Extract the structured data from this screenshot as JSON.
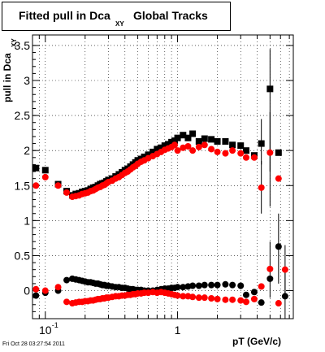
{
  "title": {
    "main": "Fitted pull in Dca",
    "sub": "XY",
    "tail": "Global Tracks"
  },
  "footer": "Fri Oct 28 03:27:54 2011",
  "colors": {
    "series_black": "#000000",
    "series_red": "#ff0000"
  },
  "chart_data": {
    "type": "scatter",
    "xlabel": "pT (GeV/c)",
    "ylabel": "pull in Dca",
    "ylabel_sub": "XY",
    "x_scale": "log",
    "xlim": [
      0.08,
      7.5
    ],
    "ylim": [
      -0.4,
      3.65
    ],
    "grid": true,
    "x_ticks": [
      {
        "value": 0.1,
        "label": "10",
        "sup": "-1"
      },
      {
        "value": 1,
        "label": "1",
        "sup": ""
      }
    ],
    "y_ticks": [
      {
        "value": 0,
        "label": "0"
      },
      {
        "value": 0.5,
        "label": "0.5"
      },
      {
        "value": 1,
        "label": "1"
      },
      {
        "value": 1.5,
        "label": "1.5"
      },
      {
        "value": 2,
        "label": "2"
      },
      {
        "value": 2.5,
        "label": "2.5"
      },
      {
        "value": 3,
        "label": "3"
      },
      {
        "value": 3.5,
        "label": "3.5"
      }
    ],
    "series": [
      {
        "marker": "square",
        "color": "#000000",
        "x": [
          0.085,
          0.1,
          0.125,
          0.145,
          0.16,
          0.17,
          0.18,
          0.19,
          0.2,
          0.21,
          0.22,
          0.23,
          0.24,
          0.25,
          0.26,
          0.27,
          0.28,
          0.29,
          0.3,
          0.32,
          0.34,
          0.36,
          0.38,
          0.4,
          0.42,
          0.44,
          0.46,
          0.48,
          0.5,
          0.53,
          0.56,
          0.6,
          0.65,
          0.7,
          0.75,
          0.8,
          0.85,
          0.9,
          0.95,
          1.0,
          1.1,
          1.2,
          1.3,
          1.45,
          1.6,
          1.8,
          2.0,
          2.3,
          2.6,
          3.0,
          3.3,
          3.8,
          4.3,
          5.0,
          5.8
        ],
        "y": [
          1.75,
          1.72,
          1.52,
          1.42,
          1.36,
          1.38,
          1.39,
          1.41,
          1.42,
          1.43,
          1.45,
          1.47,
          1.48,
          1.5,
          1.52,
          1.53,
          1.54,
          1.56,
          1.58,
          1.6,
          1.63,
          1.66,
          1.69,
          1.72,
          1.74,
          1.77,
          1.8,
          1.83,
          1.86,
          1.88,
          1.91,
          1.94,
          1.98,
          2.02,
          2.04,
          2.07,
          2.09,
          2.12,
          2.14,
          2.18,
          2.22,
          2.18,
          2.24,
          2.13,
          2.17,
          2.16,
          2.13,
          2.13,
          2.08,
          2.07,
          2.0,
          1.93,
          2.1,
          2.88,
          1.97
        ]
      },
      {
        "marker": "circle",
        "color": "#ff0000",
        "x": [
          0.085,
          0.1,
          0.125,
          0.145,
          0.16,
          0.17,
          0.18,
          0.19,
          0.2,
          0.21,
          0.22,
          0.23,
          0.24,
          0.25,
          0.26,
          0.27,
          0.28,
          0.29,
          0.3,
          0.32,
          0.34,
          0.36,
          0.38,
          0.4,
          0.42,
          0.44,
          0.46,
          0.48,
          0.5,
          0.53,
          0.56,
          0.6,
          0.65,
          0.7,
          0.75,
          0.8,
          0.85,
          0.9,
          0.95,
          1.0,
          1.1,
          1.2,
          1.3,
          1.45,
          1.6,
          1.8,
          2.0,
          2.3,
          2.6,
          3.0,
          3.3,
          3.8,
          4.3,
          5.0,
          5.8
        ],
        "y": [
          1.5,
          1.62,
          1.5,
          1.4,
          1.34,
          1.35,
          1.36,
          1.38,
          1.39,
          1.4,
          1.42,
          1.43,
          1.45,
          1.47,
          1.48,
          1.5,
          1.51,
          1.53,
          1.55,
          1.57,
          1.6,
          1.62,
          1.65,
          1.68,
          1.7,
          1.73,
          1.76,
          1.78,
          1.81,
          1.84,
          1.86,
          1.89,
          1.92,
          1.95,
          1.98,
          2.01,
          2.03,
          2.05,
          2.08,
          2.0,
          2.04,
          2.06,
          2.0,
          2.05,
          2.08,
          2.02,
          1.98,
          1.96,
          2.0,
          1.96,
          1.9,
          1.9,
          1.47,
          1.97,
          1.6
        ]
      },
      {
        "marker": "circle",
        "color": "#000000",
        "x": [
          0.085,
          0.1,
          0.125,
          0.145,
          0.16,
          0.17,
          0.18,
          0.19,
          0.2,
          0.21,
          0.22,
          0.23,
          0.24,
          0.25,
          0.26,
          0.27,
          0.28,
          0.29,
          0.3,
          0.32,
          0.34,
          0.36,
          0.38,
          0.4,
          0.42,
          0.44,
          0.46,
          0.48,
          0.5,
          0.53,
          0.56,
          0.6,
          0.65,
          0.7,
          0.75,
          0.8,
          0.85,
          0.9,
          0.95,
          1.0,
          1.1,
          1.2,
          1.3,
          1.45,
          1.6,
          1.8,
          2.0,
          2.3,
          2.6,
          3.0,
          3.3,
          3.8,
          4.3,
          5.0,
          5.8,
          6.5
        ],
        "y": [
          -0.07,
          -0.03,
          0.0,
          0.15,
          0.17,
          0.16,
          0.15,
          0.14,
          0.13,
          0.12,
          0.12,
          0.11,
          0.1,
          0.1,
          0.09,
          0.08,
          0.08,
          0.07,
          0.07,
          0.06,
          0.05,
          0.05,
          0.04,
          0.04,
          0.03,
          0.02,
          0.02,
          0.01,
          0.01,
          0.01,
          0.0,
          0.0,
          0.0,
          0.01,
          0.02,
          0.03,
          0.03,
          0.04,
          0.04,
          0.05,
          0.05,
          0.06,
          0.07,
          0.07,
          0.08,
          0.08,
          0.08,
          0.09,
          0.08,
          0.07,
          -0.06,
          -0.02,
          -0.17,
          0.17,
          0.63,
          -0.08
        ]
      },
      {
        "marker": "circle",
        "color": "#ff0000",
        "x": [
          0.085,
          0.1,
          0.125,
          0.145,
          0.16,
          0.17,
          0.18,
          0.19,
          0.2,
          0.21,
          0.22,
          0.23,
          0.24,
          0.25,
          0.26,
          0.27,
          0.28,
          0.29,
          0.3,
          0.32,
          0.34,
          0.36,
          0.38,
          0.4,
          0.42,
          0.44,
          0.46,
          0.48,
          0.5,
          0.53,
          0.56,
          0.6,
          0.65,
          0.7,
          0.75,
          0.8,
          0.85,
          0.9,
          0.95,
          1.0,
          1.1,
          1.2,
          1.3,
          1.45,
          1.6,
          1.8,
          2.0,
          2.3,
          2.6,
          3.0,
          3.3,
          3.8,
          4.3,
          5.0,
          5.8,
          6.5
        ],
        "y": [
          0.02,
          0.0,
          0.05,
          -0.16,
          -0.18,
          -0.17,
          -0.16,
          -0.16,
          -0.15,
          -0.15,
          -0.14,
          -0.14,
          -0.13,
          -0.12,
          -0.12,
          -0.11,
          -0.11,
          -0.1,
          -0.1,
          -0.09,
          -0.08,
          -0.08,
          -0.07,
          -0.07,
          -0.06,
          -0.06,
          -0.05,
          -0.05,
          -0.04,
          -0.04,
          -0.03,
          -0.03,
          -0.02,
          -0.03,
          -0.02,
          -0.03,
          -0.04,
          -0.05,
          -0.06,
          -0.07,
          -0.08,
          -0.08,
          -0.09,
          -0.1,
          -0.1,
          -0.11,
          -0.12,
          -0.13,
          -0.13,
          -0.14,
          -0.16,
          -0.12,
          0.06,
          0.31,
          -0.18,
          0.3
        ]
      }
    ],
    "error_bars": [
      {
        "x": 5.0,
        "y": 2.88,
        "ylow": 1.7,
        "yhigh": 3.45
      },
      {
        "x": 5.0,
        "y": 1.97,
        "ylow": 1.2,
        "yhigh": 2.55
      },
      {
        "x": 4.3,
        "y": 2.1,
        "ylow": 1.8,
        "yhigh": 2.45
      },
      {
        "x": 4.3,
        "y": 1.47,
        "ylow": 1.1,
        "yhigh": 1.85
      },
      {
        "x": 5.8,
        "y": 0.63,
        "ylow": 0.1,
        "yhigh": 1.1
      },
      {
        "x": 5.0,
        "y": 0.31,
        "ylow": -0.1,
        "yhigh": 0.7
      },
      {
        "x": 6.5,
        "y": -0.08,
        "ylow": -0.4,
        "yhigh": 0.3
      },
      {
        "x": 6.5,
        "y": 0.3,
        "ylow": -0.1,
        "yhigh": 0.65
      }
    ]
  }
}
